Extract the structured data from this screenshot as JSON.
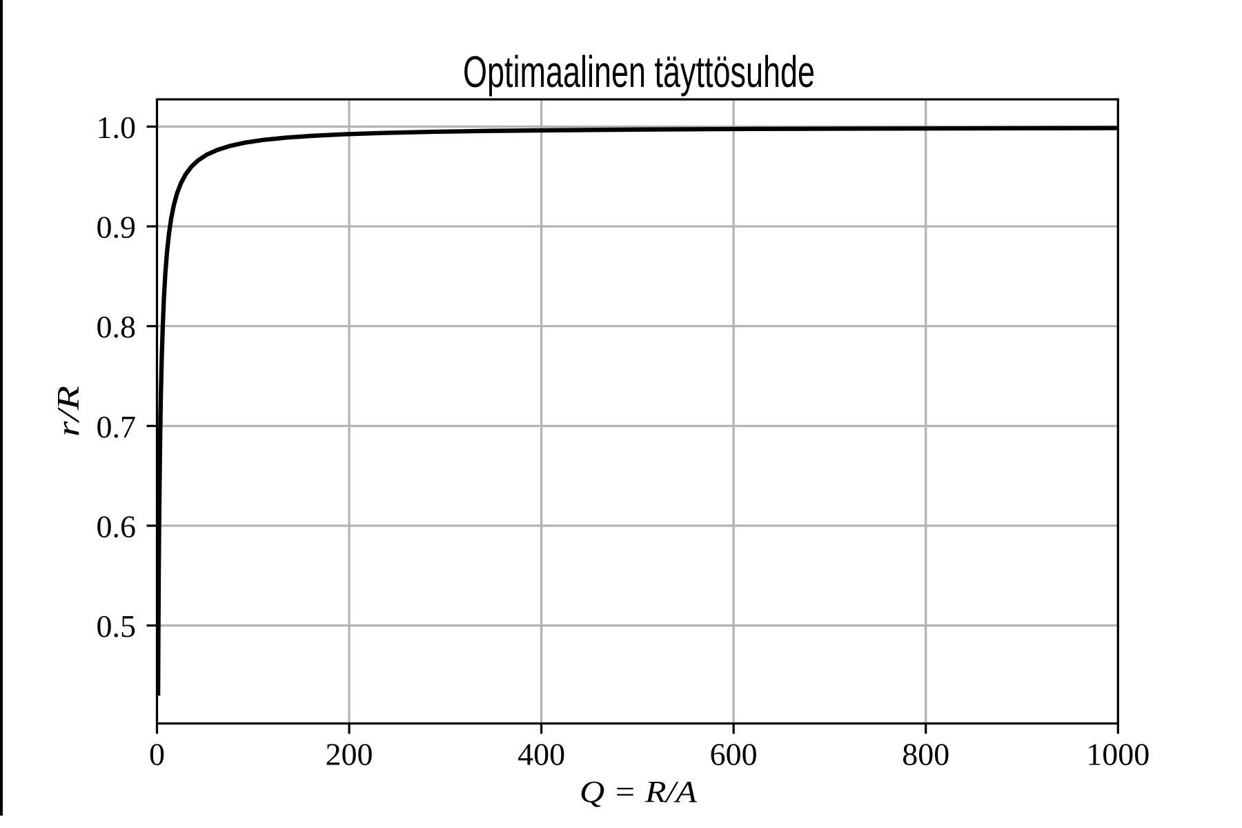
{
  "window": {
    "background": "#ffffff",
    "left_edge_line_color": "#000000"
  },
  "chart_data": {
    "type": "line",
    "title": "Optimaalinen täyttösuhde",
    "xlabel": "Q = R/A",
    "ylabel": "r/R",
    "xlim": [
      0,
      1000
    ],
    "ylim": [
      0.4018,
      1.0273
    ],
    "xticks": [
      0,
      200,
      400,
      600,
      800,
      1000
    ],
    "xtick_labels": [
      "0",
      "200",
      "400",
      "600",
      "800",
      "1000"
    ],
    "yticks": [
      0.5,
      0.6,
      0.7,
      0.8,
      0.9,
      1.0
    ],
    "ytick_labels": [
      "0.5",
      "0.6",
      "0.7",
      "0.8",
      "0.9",
      "1.0"
    ],
    "grid": true,
    "grid_color": "#b2b2b2",
    "line_color": "#000000",
    "spine_color": "#000000",
    "series": [
      {
        "name": "r/R",
        "x": [
          1.134,
          1.2,
          1.35,
          1.5,
          1.8,
          2.25,
          2.7,
          3.3,
          4.05,
          4.95,
          6,
          7.25,
          8.7,
          10.4,
          12.4,
          14.8,
          17.6,
          21,
          25,
          30,
          36,
          43,
          52,
          63,
          76,
          92,
          111,
          134,
          162,
          196,
          237,
          287,
          347,
          420,
          508,
          615,
          744,
          900,
          1000
        ],
        "y": [
          0.4297,
          0.4444,
          0.4737,
          0.5,
          0.5455,
          0.6,
          0.6429,
          0.6875,
          0.7297,
          0.7674,
          0.8,
          0.8286,
          0.8529,
          0.8739,
          0.8921,
          0.908,
          0.9215,
          0.9333,
          0.9434,
          0.9524,
          0.96,
          0.9663,
          0.972,
          0.9767,
          0.9806,
          0.984,
          0.9867,
          0.9889,
          0.9908,
          0.9924,
          0.9937,
          0.9948,
          0.9957,
          0.9964,
          0.9971,
          0.9976,
          0.998,
          0.9983,
          0.9985
        ]
      }
    ]
  }
}
